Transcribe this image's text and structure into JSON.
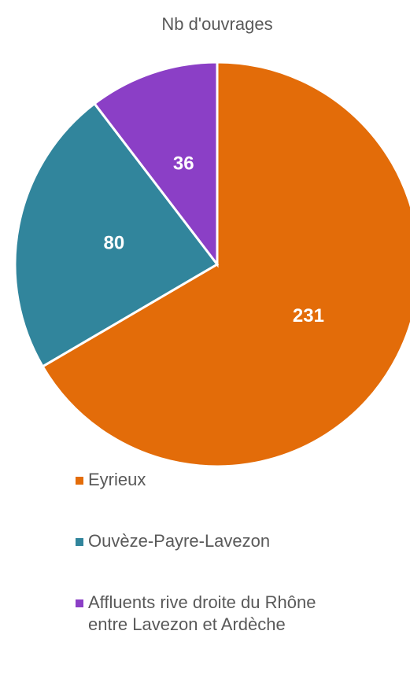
{
  "chart_data": {
    "type": "pie",
    "title": "Nb d'ouvrages",
    "categories": [
      "Eyrieux",
      "Ouvèze-Payre-Lavezon",
      "Affluents rive droite du Rhône entre Lavezon et Ardèche"
    ],
    "values": [
      231,
      80,
      36
    ],
    "colors": [
      "#e36c09",
      "#31859c",
      "#8b3fc6"
    ]
  }
}
